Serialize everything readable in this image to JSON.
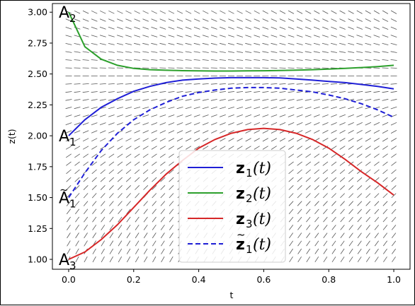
{
  "chart_data": {
    "type": "line",
    "xlabel": "t",
    "ylabel": "z(t)",
    "xlim": [
      -0.05,
      1.05
    ],
    "ylim": [
      0.92,
      3.07
    ],
    "xticks": [
      "0.0",
      "0.2",
      "0.4",
      "0.6",
      "0.8",
      "1.0"
    ],
    "yticks": [
      "1.00",
      "1.25",
      "1.50",
      "1.75",
      "2.00",
      "2.25",
      "2.50",
      "2.75",
      "3.00"
    ],
    "slope_field": true,
    "legend_position": "lower-right",
    "colors": {
      "z1": "#1f1fd6",
      "z2": "#2ca02c",
      "z3": "#d62728",
      "z1_tilde": "#1f1fd6",
      "field": "#555555"
    },
    "point_labels": [
      {
        "base": "A",
        "sub": "2",
        "tilde": false,
        "t": 0.0,
        "z": 3.0
      },
      {
        "base": "A",
        "sub": "1",
        "tilde": false,
        "t": 0.0,
        "z": 2.0
      },
      {
        "base": "A",
        "sub": "1",
        "tilde": true,
        "t": 0.0,
        "z": 1.5
      },
      {
        "base": "A",
        "sub": "3",
        "tilde": false,
        "t": 0.0,
        "z": 1.0
      }
    ],
    "series": [
      {
        "name": "z1(t)",
        "bold": "z",
        "sub": "1",
        "arg": "(t)",
        "tilde": false,
        "style": "solid",
        "color_key": "z1",
        "x": [
          0.0,
          0.05,
          0.1,
          0.15,
          0.2,
          0.25,
          0.3,
          0.35,
          0.4,
          0.45,
          0.5,
          0.55,
          0.6,
          0.65,
          0.7,
          0.75,
          0.8,
          0.85,
          0.9,
          0.95,
          1.0
        ],
        "y": [
          2.0,
          2.13,
          2.23,
          2.3,
          2.36,
          2.4,
          2.43,
          2.45,
          2.46,
          2.467,
          2.47,
          2.47,
          2.47,
          2.468,
          2.46,
          2.45,
          2.44,
          2.43,
          2.415,
          2.4,
          2.38
        ]
      },
      {
        "name": "z2(t)",
        "bold": "z",
        "sub": "2",
        "arg": "(t)",
        "tilde": false,
        "style": "solid",
        "color_key": "z2",
        "x": [
          0.0,
          0.05,
          0.1,
          0.15,
          0.2,
          0.25,
          0.3,
          0.35,
          0.4,
          0.45,
          0.5,
          0.55,
          0.6,
          0.65,
          0.7,
          0.75,
          0.8,
          0.85,
          0.9,
          0.95,
          1.0
        ],
        "y": [
          3.0,
          2.72,
          2.62,
          2.57,
          2.545,
          2.535,
          2.53,
          2.527,
          2.525,
          2.524,
          2.524,
          2.525,
          2.526,
          2.528,
          2.531,
          2.535,
          2.54,
          2.545,
          2.552,
          2.56,
          2.57
        ]
      },
      {
        "name": "z3(t)",
        "bold": "z",
        "sub": "3",
        "arg": "(t)",
        "tilde": false,
        "style": "solid",
        "color_key": "z3",
        "x": [
          0.0,
          0.05,
          0.1,
          0.15,
          0.2,
          0.25,
          0.3,
          0.35,
          0.4,
          0.45,
          0.5,
          0.55,
          0.6,
          0.65,
          0.7,
          0.75,
          0.8,
          0.85,
          0.9,
          0.95,
          1.0
        ],
        "y": [
          1.0,
          1.06,
          1.16,
          1.28,
          1.42,
          1.56,
          1.69,
          1.8,
          1.9,
          1.97,
          2.02,
          2.05,
          2.06,
          2.05,
          2.02,
          1.97,
          1.9,
          1.81,
          1.71,
          1.62,
          1.52
        ]
      },
      {
        "name": "z̃1(t)",
        "bold": "z",
        "sub": "1",
        "arg": "(t)",
        "tilde": true,
        "style": "dashed",
        "color_key": "z1_tilde",
        "x": [
          0.0,
          0.05,
          0.1,
          0.15,
          0.2,
          0.25,
          0.3,
          0.35,
          0.4,
          0.45,
          0.5,
          0.55,
          0.6,
          0.65,
          0.7,
          0.75,
          0.8,
          0.85,
          0.9,
          0.95,
          1.0
        ],
        "y": [
          1.5,
          1.7,
          1.88,
          2.02,
          2.13,
          2.21,
          2.27,
          2.32,
          2.35,
          2.37,
          2.385,
          2.39,
          2.39,
          2.385,
          2.37,
          2.355,
          2.33,
          2.3,
          2.26,
          2.21,
          2.15
        ]
      }
    ]
  }
}
